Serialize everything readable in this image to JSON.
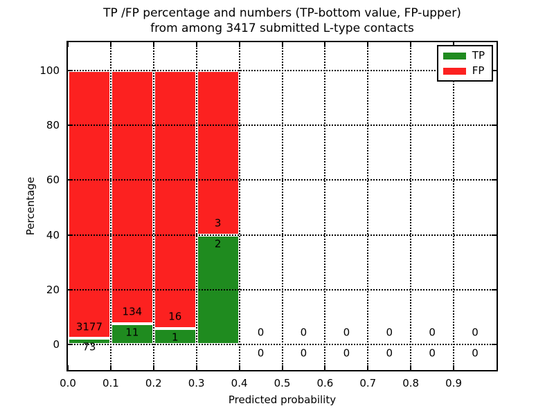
{
  "chart_data": {
    "type": "bar",
    "stacked": true,
    "title_lines": [
      "TP /FP percentage and numbers (TP-bottom value, FP-upper)",
      "from among 3417 submitted L-type contacts"
    ],
    "xlabel": "Predicted probability",
    "ylabel": "Percentage",
    "xlim": [
      0.0,
      1.0
    ],
    "ylim": [
      -9.25,
      110.25
    ],
    "xtick_labels": [
      "0.0",
      "0.1",
      "0.2",
      "0.3",
      "0.4",
      "0.5",
      "0.6",
      "0.7",
      "0.8",
      "0.9"
    ],
    "xtick_values": [
      0.0,
      0.1,
      0.2,
      0.3,
      0.4,
      0.5,
      0.6,
      0.7,
      0.8,
      0.9
    ],
    "ytick_values": [
      0,
      20,
      40,
      60,
      80,
      100
    ],
    "grid": {
      "visible": true,
      "style": "dotted",
      "color": "#000000"
    },
    "total_contacts": 3417,
    "legend": {
      "position": "upper-right",
      "items": [
        {
          "label": "TP",
          "color": "#1f8b1f"
        },
        {
          "label": "FP",
          "color": "#fc2120"
        }
      ]
    },
    "bins": [
      {
        "x_range": [
          0.0,
          0.1
        ],
        "tp_count": 73,
        "fp_count": 3177,
        "tp_pct": 2.25,
        "fp_pct": 97.75
      },
      {
        "x_range": [
          0.1,
          0.2
        ],
        "tp_count": 11,
        "fp_count": 134,
        "tp_pct": 7.59,
        "fp_pct": 92.41
      },
      {
        "x_range": [
          0.2,
          0.3
        ],
        "tp_count": 1,
        "fp_count": 16,
        "tp_pct": 5.88,
        "fp_pct": 94.12
      },
      {
        "x_range": [
          0.3,
          0.4
        ],
        "tp_count": 2,
        "fp_count": 3,
        "tp_pct": 40.0,
        "fp_pct": 60.0
      },
      {
        "x_range": [
          0.4,
          0.5
        ],
        "tp_count": 0,
        "fp_count": 0,
        "tp_pct": 0,
        "fp_pct": 0
      },
      {
        "x_range": [
          0.5,
          0.6
        ],
        "tp_count": 0,
        "fp_count": 0,
        "tp_pct": 0,
        "fp_pct": 0
      },
      {
        "x_range": [
          0.6,
          0.7
        ],
        "tp_count": 0,
        "fp_count": 0,
        "tp_pct": 0,
        "fp_pct": 0
      },
      {
        "x_range": [
          0.7,
          0.8
        ],
        "tp_count": 0,
        "fp_count": 0,
        "tp_pct": 0,
        "fp_pct": 0
      },
      {
        "x_range": [
          0.8,
          0.9
        ],
        "tp_count": 0,
        "fp_count": 0,
        "tp_pct": 0,
        "fp_pct": 0
      },
      {
        "x_range": [
          0.9,
          1.0
        ],
        "tp_count": 0,
        "fp_count": 0,
        "tp_pct": 0,
        "fp_pct": 0
      }
    ]
  }
}
